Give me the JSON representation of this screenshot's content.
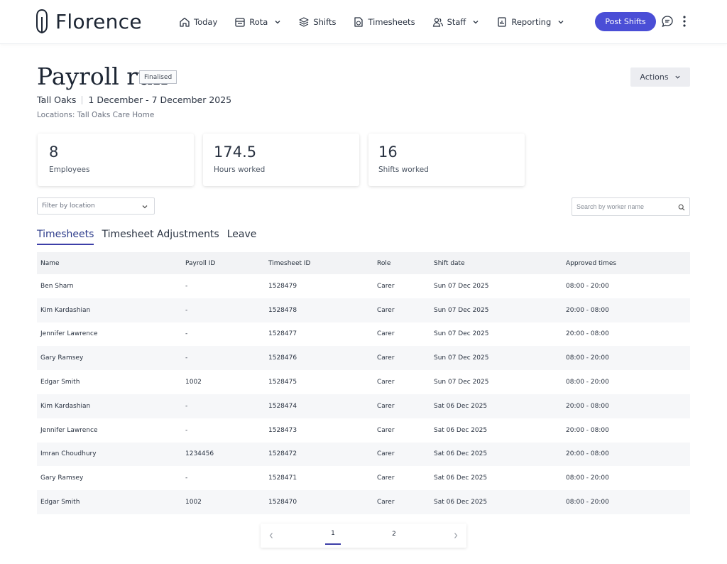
{
  "app": {
    "brand": "Florence"
  },
  "nav": {
    "items": [
      {
        "label": "Today",
        "icon": "home-icon"
      },
      {
        "label": "Rota",
        "icon": "calendar-icon"
      },
      {
        "label": "Shifts",
        "icon": "shifts-icon"
      },
      {
        "label": "Timesheets",
        "icon": "timesheet-icon"
      },
      {
        "label": "Staff",
        "icon": "staff-icon"
      },
      {
        "label": "Reporting",
        "icon": "report-icon"
      }
    ],
    "post_shifts": "Post Shifts"
  },
  "header": {
    "title": "Payroll run",
    "status": "Finalised",
    "site": "Tall Oaks",
    "period": "1 December - 7 December 2025",
    "locations": "Locations: Tall Oaks Care Home",
    "actions": "Actions"
  },
  "stats": [
    {
      "value": "8",
      "label": "Employees"
    },
    {
      "value": "174.5",
      "label": "Hours worked"
    },
    {
      "value": "16",
      "label": "Shifts worked"
    }
  ],
  "filters": {
    "location_placeholder": "Filter by location",
    "search_placeholder": "Search by worker name"
  },
  "tabs": [
    "Timesheets",
    "Timesheet Adjustments",
    "Leave"
  ],
  "table": {
    "columns": [
      "Name",
      "Payroll ID",
      "Timesheet ID",
      "Role",
      "Shift date",
      "Approved times"
    ],
    "rows": [
      [
        "Ben Sharn",
        "-",
        "1528479",
        "Carer",
        "Sun 07 Dec 2025",
        "08:00 - 20:00"
      ],
      [
        "Kim Kardashian",
        "-",
        "1528478",
        "Carer",
        "Sun 07 Dec 2025",
        "20:00 - 08:00"
      ],
      [
        "Jennifer Lawrence",
        "-",
        "1528477",
        "Carer",
        "Sun 07 Dec 2025",
        "20:00 - 08:00"
      ],
      [
        "Gary Ramsey",
        "-",
        "1528476",
        "Carer",
        "Sun 07 Dec 2025",
        "08:00 - 20:00"
      ],
      [
        "Edgar Smith",
        "1002",
        "1528475",
        "Carer",
        "Sun 07 Dec 2025",
        "08:00 - 20:00"
      ],
      [
        "Kim Kardashian",
        "-",
        "1528474",
        "Carer",
        "Sat 06 Dec 2025",
        "20:00 - 08:00"
      ],
      [
        "Jennifer Lawrence",
        "-",
        "1528473",
        "Carer",
        "Sat 06 Dec 2025",
        "20:00 - 08:00"
      ],
      [
        "Imran Choudhury",
        "1234456",
        "1528472",
        "Carer",
        "Sat 06 Dec 2025",
        "20:00 - 08:00"
      ],
      [
        "Gary Ramsey",
        "-",
        "1528471",
        "Carer",
        "Sat 06 Dec 2025",
        "08:00 - 20:00"
      ],
      [
        "Edgar Smith",
        "1002",
        "1528470",
        "Carer",
        "Sat 06 Dec 2025",
        "08:00 - 20:00"
      ]
    ]
  },
  "pagination": {
    "pages": [
      "1",
      "2"
    ],
    "current": "1"
  },
  "colors": {
    "accent": "#4a4ed6",
    "tab_active": "#3d3fa8"
  }
}
